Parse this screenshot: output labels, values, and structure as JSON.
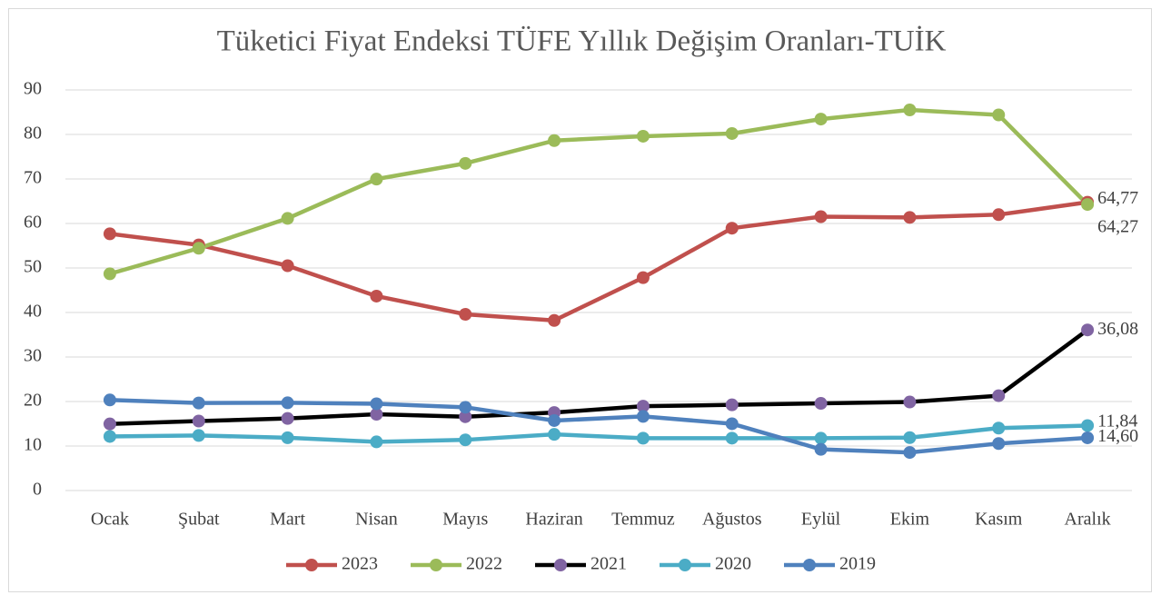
{
  "chart_data": {
    "type": "line",
    "title": "Tüketici Fiyat Endeksi TÜFE Yıllık Değişim Oranları-TUİK",
    "categories": [
      "Ocak",
      "Şubat",
      "Mart",
      "Nisan",
      "Mayıs",
      "Haziran",
      "Temmuz",
      "Ağustos",
      "Eylül",
      "Ekim",
      "Kasım",
      "Aralık"
    ],
    "series": [
      {
        "name": "2023",
        "color": "#c0504d",
        "marker_color": "#c0504d",
        "values": [
          57.68,
          55.18,
          50.51,
          43.68,
          39.59,
          38.21,
          47.83,
          58.94,
          61.53,
          61.36,
          61.98,
          64.77
        ],
        "value_labels": [
          null,
          null,
          null,
          null,
          null,
          null,
          null,
          null,
          null,
          null,
          null,
          "64,77"
        ]
      },
      {
        "name": "2022",
        "color": "#9bbb59",
        "marker_color": "#9bbb59",
        "values": [
          48.69,
          54.44,
          61.14,
          69.97,
          73.5,
          78.62,
          79.6,
          80.21,
          83.45,
          85.51,
          84.39,
          64.27
        ],
        "value_labels": [
          null,
          null,
          null,
          null,
          null,
          null,
          null,
          null,
          null,
          null,
          null,
          "64,27"
        ]
      },
      {
        "name": "2021",
        "color": "#000000",
        "marker_color": "#8064a2",
        "values": [
          14.97,
          15.61,
          16.19,
          17.14,
          16.59,
          17.53,
          18.95,
          19.25,
          19.58,
          19.89,
          21.31,
          36.08
        ],
        "value_labels": [
          null,
          null,
          null,
          null,
          null,
          null,
          null,
          null,
          null,
          null,
          null,
          "36,08"
        ]
      },
      {
        "name": "2020",
        "color": "#4bacc6",
        "marker_color": "#4bacc6",
        "values": [
          12.15,
          12.37,
          11.86,
          10.94,
          11.39,
          12.62,
          11.76,
          11.77,
          11.75,
          11.89,
          14.03,
          14.6
        ],
        "value_labels": [
          null,
          null,
          null,
          null,
          null,
          null,
          null,
          null,
          null,
          null,
          null,
          "14,60"
        ]
      },
      {
        "name": "2019",
        "color": "#4f81bd",
        "marker_color": "#4f81bd",
        "values": [
          20.35,
          19.67,
          19.71,
          19.5,
          18.71,
          15.72,
          16.65,
          15.01,
          9.26,
          8.55,
          10.56,
          11.84
        ],
        "value_labels": [
          null,
          null,
          null,
          null,
          null,
          null,
          null,
          null,
          null,
          null,
          null,
          "11,84"
        ]
      }
    ],
    "ylim": [
      0,
      90
    ],
    "yticks": [
      0,
      10,
      20,
      30,
      40,
      50,
      60,
      70,
      80,
      90
    ],
    "grid": true,
    "legend": "bottom"
  }
}
